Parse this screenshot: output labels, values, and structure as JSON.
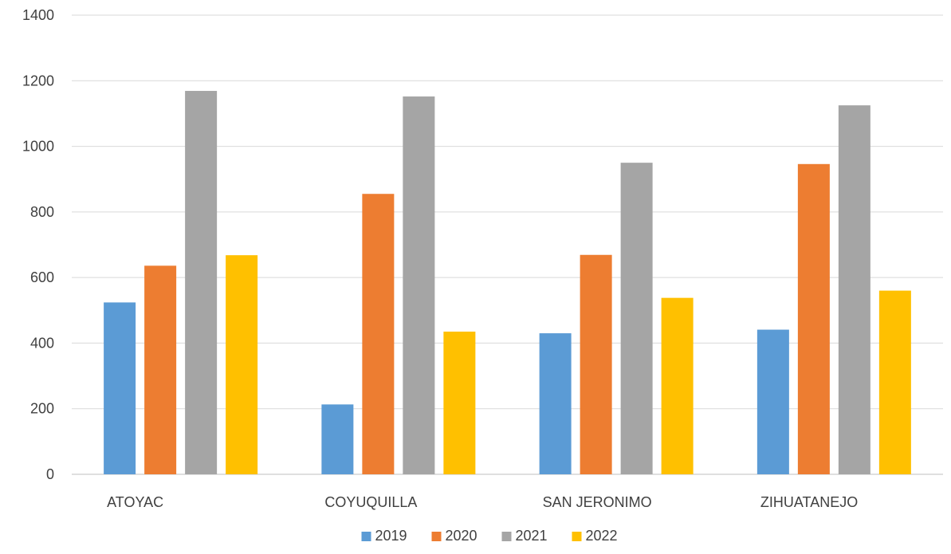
{
  "chart_data": {
    "type": "bar",
    "title": "",
    "xlabel": "",
    "ylabel": "",
    "categories": [
      "ATOYAC",
      "COYUQUILLA",
      "SAN JERONIMO",
      "ZIHUATANEJO"
    ],
    "series": [
      {
        "name": "2019",
        "color": "#5B9BD5",
        "values": [
          524,
          213,
          430,
          441
        ]
      },
      {
        "name": "2020",
        "color": "#ED7D31",
        "values": [
          636,
          855,
          669,
          946
        ]
      },
      {
        "name": "2021",
        "color": "#A5A5A5",
        "values": [
          1169,
          1152,
          950,
          1125
        ]
      },
      {
        "name": "2022",
        "color": "#FFC000",
        "values": [
          668,
          435,
          538,
          560
        ]
      }
    ],
    "ylim": [
      0,
      1400
    ],
    "yticks": [
      "0",
      "200",
      "400",
      "600",
      "800",
      "1000",
      "1200",
      "1400"
    ],
    "grid": true,
    "legend": "bottom"
  }
}
